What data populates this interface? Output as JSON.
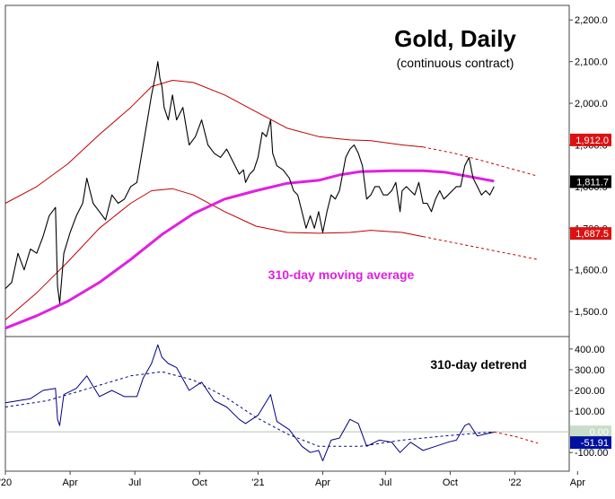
{
  "chart_data": [
    {
      "type": "line",
      "panel": "price",
      "title": "Gold, Daily",
      "subtitle": "(continuous contract)",
      "annotation": "310-day moving average",
      "ylim": [
        1440,
        2235
      ],
      "y_ticks": [
        "2,200.0",
        "2,100.0",
        "2,000.0",
        "1,900.0",
        "1,800.0",
        "1,700.0",
        "1,600.0",
        "1,500.0"
      ],
      "y_tick_values": [
        2200,
        2100,
        2000,
        1900,
        1800,
        1700,
        1600,
        1500
      ],
      "value_tags": [
        {
          "label": "1,912.0",
          "value": 1912,
          "color": "#dd1111",
          "text_color": "#ffffff"
        },
        {
          "label": "1,811.7",
          "value": 1811.7,
          "color": "#000000",
          "text_color": "#ffffff"
        },
        {
          "label": "1,687.5",
          "value": 1687.5,
          "color": "#dd1111",
          "text_color": "#ffffff"
        }
      ],
      "series": [
        {
          "role": "price",
          "color": "#000000",
          "points": [
            [
              0,
              1555
            ],
            [
              3,
              1570
            ],
            [
              6,
              1640
            ],
            [
              9,
              1600
            ],
            [
              12,
              1650
            ],
            [
              15,
              1640
            ],
            [
              18,
              1680
            ],
            [
              21,
              1730
            ],
            [
              24,
              1750
            ],
            [
              25,
              1560
            ],
            [
              26,
              1520
            ],
            [
              28,
              1640
            ],
            [
              31,
              1690
            ],
            [
              34,
              1730
            ],
            [
              37,
              1760
            ],
            [
              39,
              1820
            ],
            [
              42,
              1760
            ],
            [
              45,
              1740
            ],
            [
              48,
              1720
            ],
            [
              51,
              1780
            ],
            [
              54,
              1760
            ],
            [
              57,
              1770
            ],
            [
              60,
              1800
            ],
            [
              63,
              1810
            ],
            [
              66,
              1900
            ],
            [
              68,
              1960
            ],
            [
              70,
              2020
            ],
            [
              72,
              2070
            ],
            [
              73,
              2100
            ],
            [
              74,
              2060
            ],
            [
              75,
              2040
            ],
            [
              76,
              1990
            ],
            [
              78,
              1960
            ],
            [
              80,
              2020
            ],
            [
              82,
              1960
            ],
            [
              85,
              1990
            ],
            [
              88,
              1900
            ],
            [
              91,
              1920
            ],
            [
              94,
              1960
            ],
            [
              97,
              1900
            ],
            [
              100,
              1880
            ],
            [
              103,
              1870
            ],
            [
              106,
              1890
            ],
            [
              109,
              1860
            ],
            [
              112,
              1830
            ],
            [
              114,
              1840
            ],
            [
              115,
              1810
            ],
            [
              117,
              1830
            ],
            [
              119,
              1840
            ],
            [
              121,
              1870
            ],
            [
              123,
              1930
            ],
            [
              125,
              1920
            ],
            [
              127,
              1960
            ],
            [
              128,
              1880
            ],
            [
              130,
              1850
            ],
            [
              133,
              1840
            ],
            [
              136,
              1820
            ],
            [
              138,
              1790
            ],
            [
              140,
              1780
            ],
            [
              142,
              1740
            ],
            [
              144,
              1700
            ],
            [
              146,
              1730
            ],
            [
              148,
              1700
            ],
            [
              150,
              1740
            ],
            [
              152,
              1690
            ],
            [
              154,
              1740
            ],
            [
              156,
              1780
            ],
            [
              158,
              1770
            ],
            [
              160,
              1790
            ],
            [
              163,
              1870
            ],
            [
              165,
              1890
            ],
            [
              167,
              1900
            ],
            [
              169,
              1880
            ],
            [
              171,
              1850
            ],
            [
              173,
              1770
            ],
            [
              175,
              1780
            ],
            [
              177,
              1800
            ],
            [
              179,
              1800
            ],
            [
              181,
              1780
            ],
            [
              183,
              1780
            ],
            [
              185,
              1790
            ],
            [
              187,
              1810
            ],
            [
              189,
              1740
            ],
            [
              190,
              1790
            ],
            [
              192,
              1800
            ],
            [
              194,
              1790
            ],
            [
              196,
              1780
            ],
            [
              198,
              1810
            ],
            [
              200,
              1760
            ],
            [
              202,
              1760
            ],
            [
              204,
              1740
            ],
            [
              206,
              1770
            ],
            [
              208,
              1790
            ],
            [
              210,
              1770
            ],
            [
              212,
              1780
            ],
            [
              214,
              1790
            ],
            [
              216,
              1800
            ],
            [
              218,
              1800
            ],
            [
              220,
              1850
            ],
            [
              221,
              1860
            ],
            [
              222,
              1870
            ],
            [
              224,
              1820
            ],
            [
              226,
              1800
            ],
            [
              228,
              1780
            ],
            [
              230,
              1790
            ],
            [
              232,
              1780
            ],
            [
              234,
              1800
            ]
          ]
        },
        {
          "role": "moving_average",
          "name": "310-day moving average",
          "color": "#e020e0",
          "points": [
            [
              0,
              1460
            ],
            [
              15,
              1490
            ],
            [
              30,
              1525
            ],
            [
              45,
              1570
            ],
            [
              60,
              1625
            ],
            [
              75,
              1685
            ],
            [
              90,
              1735
            ],
            [
              105,
              1770
            ],
            [
              120,
              1790
            ],
            [
              135,
              1808
            ],
            [
              150,
              1815
            ],
            [
              160,
              1828
            ],
            [
              170,
              1836
            ],
            [
              185,
              1838
            ],
            [
              200,
              1838
            ],
            [
              210,
              1835
            ],
            [
              220,
              1826
            ],
            [
              234,
              1813
            ]
          ]
        },
        {
          "role": "upper_band",
          "color": "#c00000",
          "style": "solid",
          "points": [
            [
              0,
              1760
            ],
            [
              15,
              1800
            ],
            [
              30,
              1855
            ],
            [
              45,
              1925
            ],
            [
              60,
              1990
            ],
            [
              70,
              2040
            ],
            [
              80,
              2055
            ],
            [
              90,
              2050
            ],
            [
              105,
              2020
            ],
            [
              120,
              1980
            ],
            [
              135,
              1940
            ],
            [
              150,
              1920
            ],
            [
              165,
              1912
            ],
            [
              175,
              1910
            ],
            [
              190,
              1900
            ],
            [
              200,
              1895
            ]
          ]
        },
        {
          "role": "upper_band_projection",
          "color": "#c00000",
          "style": "dashed",
          "points": [
            [
              200,
              1895
            ],
            [
              215,
              1880
            ],
            [
              230,
              1860
            ],
            [
              255,
              1825
            ]
          ]
        },
        {
          "role": "lower_band",
          "color": "#c00000",
          "style": "solid",
          "points": [
            [
              0,
              1480
            ],
            [
              15,
              1545
            ],
            [
              30,
              1620
            ],
            [
              45,
              1700
            ],
            [
              60,
              1760
            ],
            [
              70,
              1790
            ],
            [
              80,
              1795
            ],
            [
              90,
              1780
            ],
            [
              105,
              1740
            ],
            [
              120,
              1705
            ],
            [
              135,
              1690
            ],
            [
              150,
              1688
            ],
            [
              165,
              1690
            ],
            [
              175,
              1695
            ],
            [
              190,
              1690
            ],
            [
              200,
              1680
            ]
          ]
        },
        {
          "role": "lower_band_projection",
          "color": "#c00000",
          "style": "dashed",
          "points": [
            [
              200,
              1680
            ],
            [
              215,
              1665
            ],
            [
              230,
              1650
            ],
            [
              255,
              1625
            ]
          ]
        }
      ]
    },
    {
      "type": "line",
      "panel": "detrend",
      "annotation": "310-day detrend",
      "ylim": [
        -190,
        460
      ],
      "y_ticks": [
        "400.00",
        "300.00",
        "200.00",
        "100.00",
        "-100.00"
      ],
      "y_tick_values": [
        400,
        300,
        200,
        100,
        -100
      ],
      "zero_line": 0,
      "value_tags": [
        {
          "label": "0.00",
          "value": 0,
          "color": "#c8ddc8",
          "text_color": "#ffffff"
        },
        {
          "label": "-51.91",
          "value": -51.91,
          "color": "#0010a0",
          "text_color": "#ffffff"
        }
      ],
      "series": [
        {
          "role": "detrend",
          "color": "#000080",
          "style": "solid",
          "points": [
            [
              0,
              140
            ],
            [
              6,
              150
            ],
            [
              12,
              160
            ],
            [
              18,
              200
            ],
            [
              24,
              210
            ],
            [
              25,
              60
            ],
            [
              26,
              30
            ],
            [
              28,
              180
            ],
            [
              34,
              210
            ],
            [
              39,
              270
            ],
            [
              45,
              170
            ],
            [
              51,
              200
            ],
            [
              57,
              170
            ],
            [
              63,
              170
            ],
            [
              66,
              260
            ],
            [
              70,
              330
            ],
            [
              73,
              420
            ],
            [
              75,
              360
            ],
            [
              78,
              330
            ],
            [
              82,
              310
            ],
            [
              88,
              200
            ],
            [
              94,
              240
            ],
            [
              100,
              150
            ],
            [
              106,
              120
            ],
            [
              112,
              60
            ],
            [
              115,
              40
            ],
            [
              121,
              80
            ],
            [
              127,
              180
            ],
            [
              130,
              50
            ],
            [
              136,
              10
            ],
            [
              142,
              -70
            ],
            [
              146,
              -100
            ],
            [
              150,
              -90
            ],
            [
              152,
              -140
            ],
            [
              156,
              -40
            ],
            [
              160,
              -30
            ],
            [
              165,
              60
            ],
            [
              169,
              40
            ],
            [
              173,
              -70
            ],
            [
              179,
              -40
            ],
            [
              185,
              -50
            ],
            [
              189,
              -100
            ],
            [
              194,
              -50
            ],
            [
              200,
              -90
            ],
            [
              206,
              -70
            ],
            [
              212,
              -50
            ],
            [
              216,
              -40
            ],
            [
              220,
              30
            ],
            [
              222,
              40
            ],
            [
              226,
              -20
            ],
            [
              230,
              -10
            ],
            [
              234,
              -2
            ]
          ]
        },
        {
          "role": "detrend_smooth",
          "color": "#000080",
          "style": "dashed",
          "points": [
            [
              0,
              120
            ],
            [
              20,
              150
            ],
            [
              40,
              210
            ],
            [
              60,
              270
            ],
            [
              75,
              290
            ],
            [
              90,
              250
            ],
            [
              105,
              170
            ],
            [
              120,
              70
            ],
            [
              135,
              -10
            ],
            [
              150,
              -70
            ],
            [
              170,
              -70
            ],
            [
              190,
              -40
            ],
            [
              210,
              -20
            ],
            [
              234,
              0
            ]
          ]
        },
        {
          "role": "detrend_projection",
          "color": "#c00000",
          "style": "dashed",
          "points": [
            [
              234,
              0
            ],
            [
              245,
              -25
            ],
            [
              255,
              -55
            ]
          ]
        }
      ]
    }
  ],
  "x_axis": {
    "range": [
      0,
      270
    ],
    "tick_labels": [
      "'20",
      "Apr",
      "Jul",
      "Oct",
      "'21",
      "Apr",
      "Jul",
      "Oct",
      "'22",
      "Apr"
    ],
    "tick_values": [
      0,
      31,
      62,
      93,
      121,
      152,
      182,
      213,
      244,
      274
    ]
  }
}
